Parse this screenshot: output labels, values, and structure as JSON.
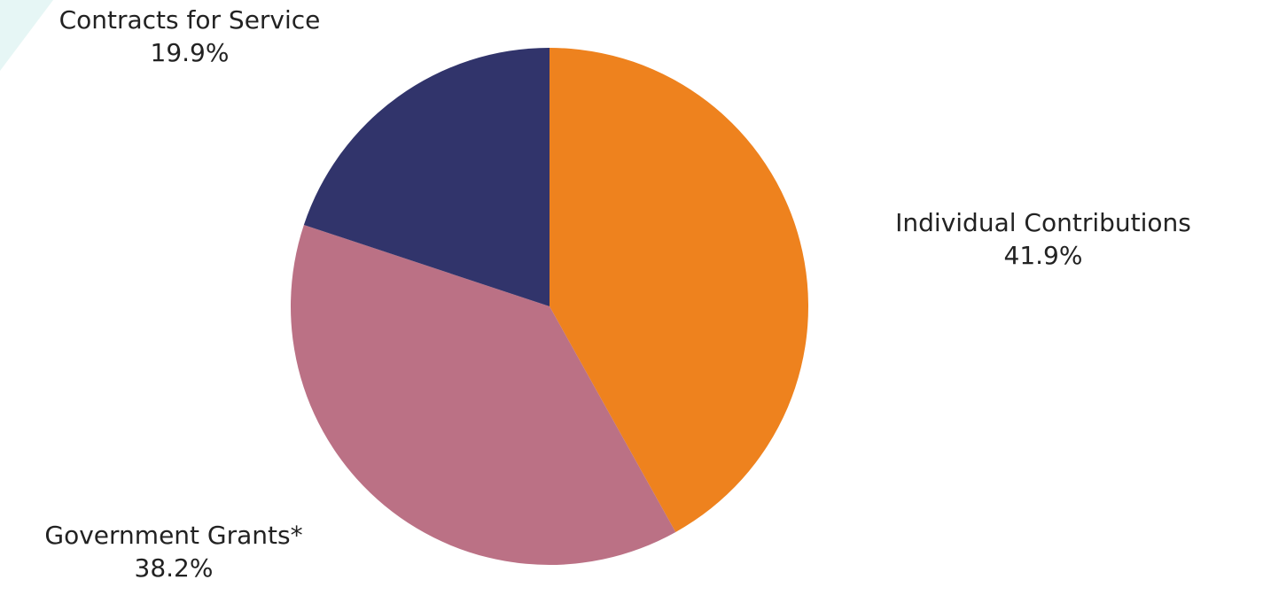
{
  "chart_data": {
    "type": "pie",
    "title": "",
    "legend": "none",
    "slices": [
      {
        "name": "Individual Contributions",
        "value": 41.9,
        "label": "41.9%",
        "color": "#ee821e"
      },
      {
        "name": "Government Grants*",
        "value": 38.2,
        "label": "38.2%",
        "color": "#bb7185"
      },
      {
        "name": "Contracts for Service",
        "value": 19.9,
        "label": "19.9%",
        "color": "#31346b"
      }
    ]
  },
  "theme": {
    "accent_color": "#e6f6f5"
  }
}
